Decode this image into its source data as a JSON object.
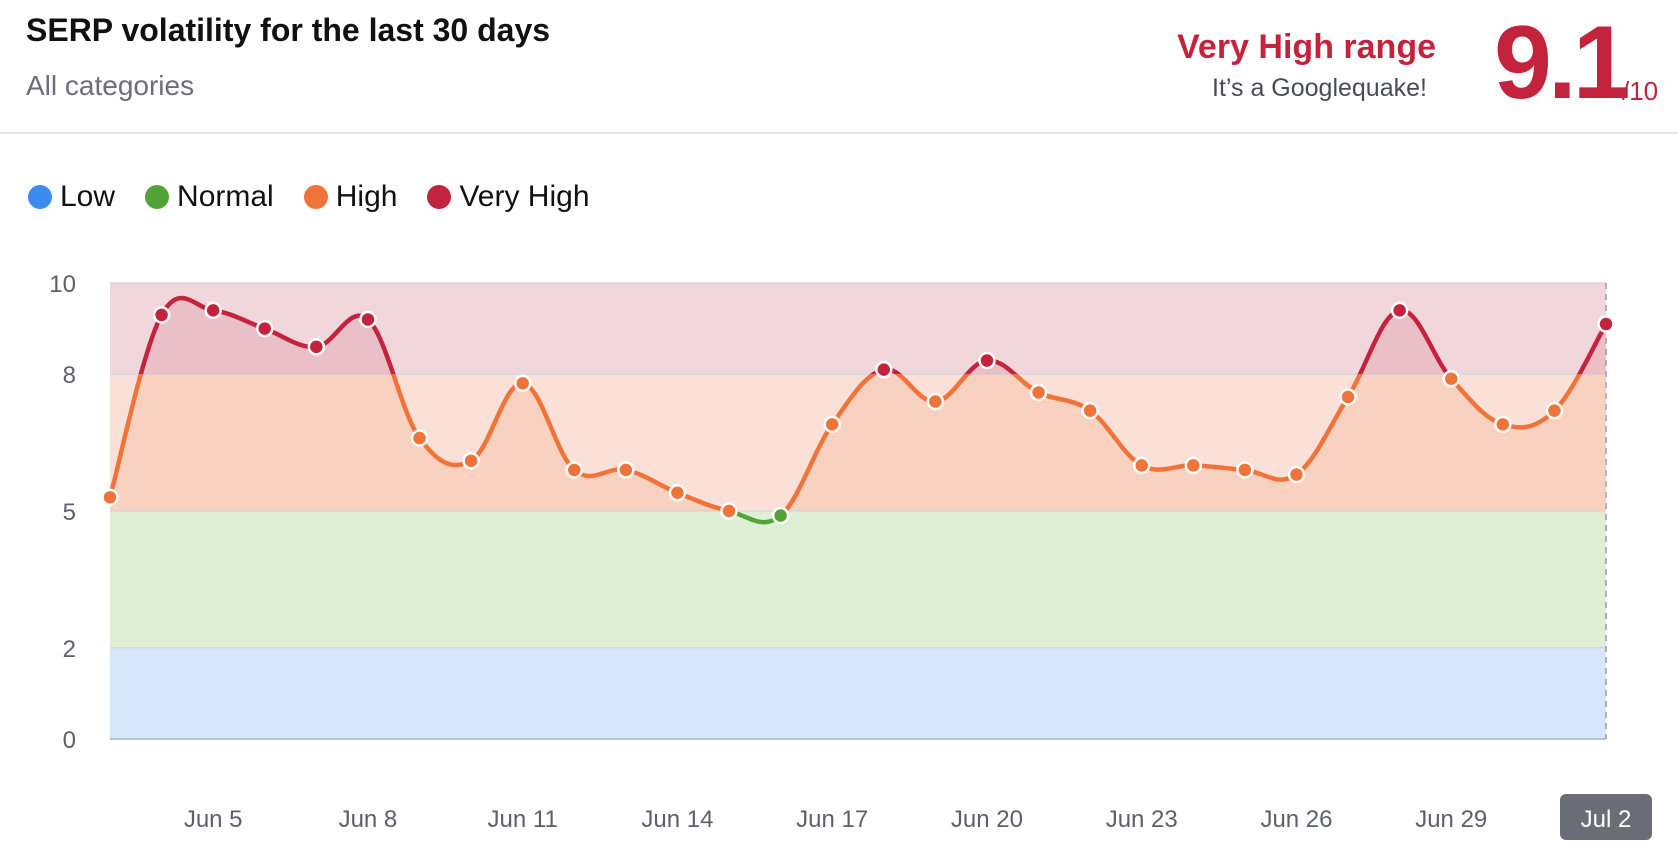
{
  "header": {
    "title": "SERP volatility for the last 30 days",
    "subtitle": "All categories",
    "range_label": "Very High range",
    "range_desc": "It’s a Googlequake!",
    "score": "9.1",
    "score_max": "/10"
  },
  "legend": [
    {
      "label": "Low",
      "color": "#3d8bef"
    },
    {
      "label": "Normal",
      "color": "#54a338"
    },
    {
      "label": "High",
      "color": "#f07339"
    },
    {
      "label": "Very High",
      "color": "#c4233d"
    }
  ],
  "chart_data": {
    "type": "line",
    "ylim": [
      0,
      10
    ],
    "yticks": [
      "10",
      "8",
      "5",
      "2",
      "0"
    ],
    "ytick_values": [
      10,
      8,
      5,
      2,
      0
    ],
    "xticks": [
      "Jun 5",
      "Jun 8",
      "Jun 11",
      "Jun 14",
      "Jun 17",
      "Jun 20",
      "Jun 23",
      "Jun 26",
      "Jun 29",
      "Jul 2"
    ],
    "xtick_dates": [
      "2024-06-05",
      "2024-06-08",
      "2024-06-11",
      "2024-06-14",
      "2024-06-17",
      "2024-06-20",
      "2024-06-23",
      "2024-06-26",
      "2024-06-29",
      "2024-07-02"
    ],
    "highlighted_xtick": "Jul 2",
    "bands": [
      {
        "name": "Low",
        "from": 0,
        "to": 2,
        "color": "#d7e6fb"
      },
      {
        "name": "Normal",
        "from": 2,
        "to": 5,
        "color": "#dfeed6"
      },
      {
        "name": "High",
        "from": 5,
        "to": 8,
        "color": "#fae0d6"
      },
      {
        "name": "Very High",
        "from": 8,
        "to": 10,
        "color": "#f1d6db"
      }
    ],
    "series": [
      {
        "x": [
          "2024-06-03",
          "2024-06-04",
          "2024-06-05",
          "2024-06-06",
          "2024-06-07",
          "2024-06-08",
          "2024-06-09",
          "2024-06-10",
          "2024-06-11",
          "2024-06-12",
          "2024-06-13",
          "2024-06-14",
          "2024-06-15",
          "2024-06-16",
          "2024-06-17",
          "2024-06-18",
          "2024-06-19",
          "2024-06-20",
          "2024-06-21",
          "2024-06-22",
          "2024-06-23",
          "2024-06-24",
          "2024-06-25",
          "2024-06-26",
          "2024-06-27",
          "2024-06-28",
          "2024-06-29",
          "2024-06-30",
          "2024-07-01",
          "2024-07-02"
        ],
        "values": [
          5.3,
          9.3,
          9.4,
          9.0,
          8.6,
          9.2,
          6.6,
          6.1,
          7.8,
          5.9,
          5.9,
          5.4,
          5.0,
          4.9,
          6.9,
          8.1,
          7.4,
          8.3,
          7.6,
          7.2,
          6.0,
          6.0,
          5.9,
          5.8,
          7.5,
          9.4,
          7.9,
          6.9,
          7.2,
          9.1
        ]
      }
    ]
  }
}
